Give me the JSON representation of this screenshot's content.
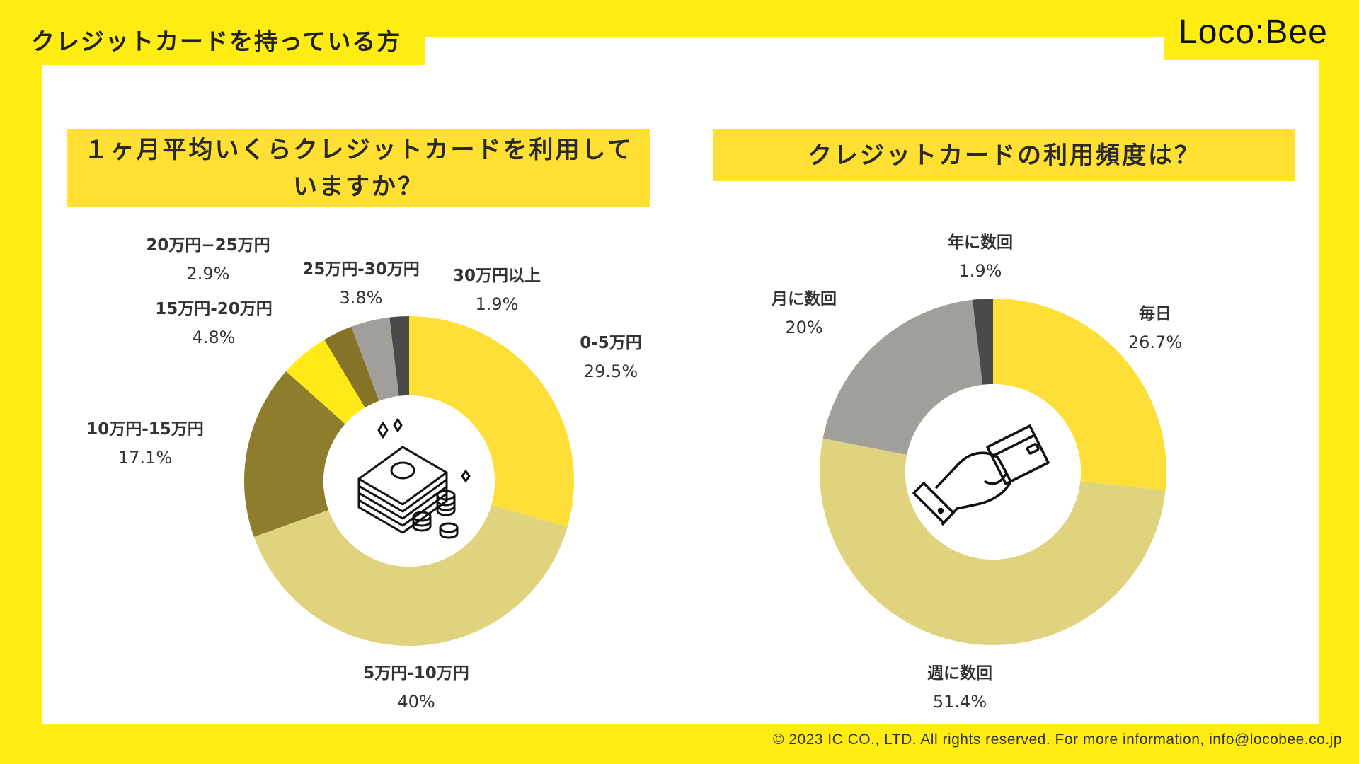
{
  "page": {
    "title": "クレジットカードを持っている方",
    "logo_text": "Loco:Bee",
    "footer": "© 2023 IC CO., LTD. All rights reserved. For more information, info@locobee.co.jp"
  },
  "colors": {
    "background": "#FFEC12",
    "panel": "#FFFFFF",
    "question_box": "#FFE033"
  },
  "chart_data": [
    {
      "type": "pie",
      "title": "１ヶ月平均いくらクレジットカードを利用していますか？",
      "center_icon": "money-stack-icon",
      "categories": [
        "0-5万円",
        "5万円-10万円",
        "10万円-15万円",
        "15万円-20万円",
        "20万円−25万円",
        "25万円-30万円",
        "30万円以上"
      ],
      "values": [
        29.5,
        40,
        17.1,
        4.8,
        2.9,
        3.8,
        1.9
      ],
      "labels": [
        "29.5%",
        "40%",
        "17.1%",
        "4.8%",
        "2.9%",
        "3.8%",
        "1.9%"
      ],
      "colors": [
        "#FDDF37",
        "#E0D37D",
        "#8D7D2C",
        "#FFEA18",
        "#857428",
        "#A19F99",
        "#4A4A4A"
      ]
    },
    {
      "type": "pie",
      "title": "クレジットカードの利用頻度は？",
      "center_icon": "hand-card-icon",
      "categories": [
        "毎日",
        "週に数回",
        "月に数回",
        "年に数回"
      ],
      "values": [
        26.7,
        51.4,
        20,
        1.9
      ],
      "labels": [
        "26.7%",
        "51.4%",
        "20%",
        "1.9%"
      ],
      "colors": [
        "#FDDF37",
        "#E0D37D",
        "#A19F99",
        "#4A4A4A"
      ]
    }
  ]
}
